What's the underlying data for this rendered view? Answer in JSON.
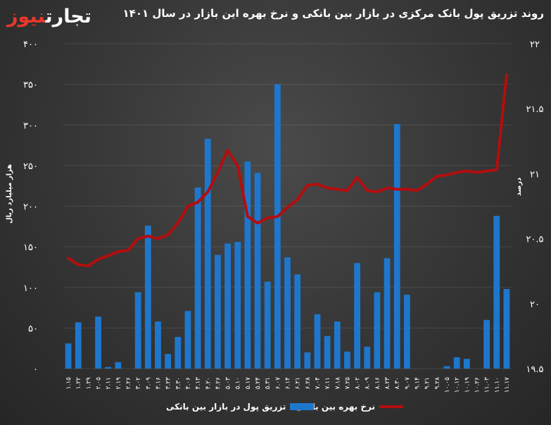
{
  "header": {
    "logo_text_a": "تجارت",
    "logo_text_b": "نیوز",
    "title": "روند تزریق پول بانک مرکزی در بازار بین بانکی و نرخ بهره این بازار در سال ۱۴۰۱"
  },
  "legend": {
    "bar_label": "تزریق پول در بازار بین بانکی",
    "line_label": "نرخ بهره بین بانکی"
  },
  "colors": {
    "bar": "#1e77cc",
    "line": "#b30e0e"
  },
  "chart_data": {
    "type": "bar",
    "title": "روند تزریق پول بانک مرکزی در بازار بین بانکی و نرخ بهره این بازار در سال ۱۴۰۱",
    "ylabel": "هزار میلیارد ریال",
    "y2label": "درصد",
    "ylim": [
      0,
      400
    ],
    "y2lim": [
      19.5,
      22
    ],
    "y_ticks": [
      "۰",
      "۵۰",
      "۱۰۰",
      "۱۵۰",
      "۲۰۰",
      "۲۵۰",
      "۳۰۰",
      "۳۵۰",
      "۴۰۰"
    ],
    "y2_ticks": [
      "۱۹.۵",
      "۲۰",
      "۲۰.۵",
      "۲۱",
      "۲۱.۵",
      "۲۲"
    ],
    "categories": [
      "۱.۱۵",
      "۱.۲۲",
      "۱.۲۹",
      "۲.۰۵",
      "۲.۱۱",
      "۲.۱۹",
      "۲.۲۶",
      "۳.۰۲",
      "۳.۰۹",
      "۳.۱۶",
      "۳.۲۳",
      "۳.۳۰",
      "۴.۰۶",
      "۴.۱۳",
      "۴.۲۰",
      "۴.۲۶",
      "۵.۰۳",
      "۵.۱۰",
      "۵.۱۷",
      "۵.۲۴",
      "۵.۳۱",
      "۶.۰۷",
      "۶.۱۴",
      "۶.۲۱",
      "۶.۲۸",
      "۷.۰۴",
      "۷.۱۱",
      "۷.۱۸",
      "۷.۲۵",
      "۸.۰۲",
      "۸.۰۹",
      "۸.۱۶",
      "۸.۲۳",
      "۸.۳۰",
      "۹.۰۷",
      "۹.۱۴",
      "۹.۲۱",
      "۹.۲۸",
      "۱۰.۰۵",
      "۱۰.۱۲",
      "۱۰.۱۹",
      "۱۰.۲۶",
      "۱۱.۰۳",
      "۱۱.۱۰",
      "۱۱.۱۷"
    ],
    "series": [
      {
        "name": "تزریق پول در بازار بین بانکی",
        "type": "bar",
        "axis": "left",
        "values": [
          31,
          57,
          0,
          64,
          2,
          8,
          0,
          94,
          176,
          58,
          18,
          39,
          71,
          223,
          283,
          140,
          154,
          156,
          255,
          241,
          107,
          350,
          137,
          116,
          20,
          67,
          40,
          58,
          21,
          130,
          27,
          94,
          136,
          301,
          91,
          0,
          0,
          0,
          3,
          14,
          12,
          0,
          60,
          188,
          98
        ]
      },
      {
        "name": "نرخ بهره بین بانکی",
        "type": "line",
        "axis": "right",
        "values": [
          20.35,
          20.3,
          20.29,
          20.34,
          20.37,
          20.4,
          20.41,
          20.5,
          20.52,
          20.5,
          20.53,
          20.62,
          20.75,
          20.78,
          20.86,
          21.01,
          21.18,
          21.06,
          20.67,
          20.62,
          20.66,
          20.67,
          20.74,
          20.8,
          20.91,
          20.92,
          20.89,
          20.88,
          20.87,
          20.97,
          20.87,
          20.86,
          20.89,
          20.88,
          20.88,
          20.87,
          20.92,
          20.98,
          20.99,
          21.01,
          21.02,
          21.01,
          21.02,
          21.03,
          21.76
        ]
      }
    ],
    "grid": true,
    "legend_position": "bottom"
  }
}
